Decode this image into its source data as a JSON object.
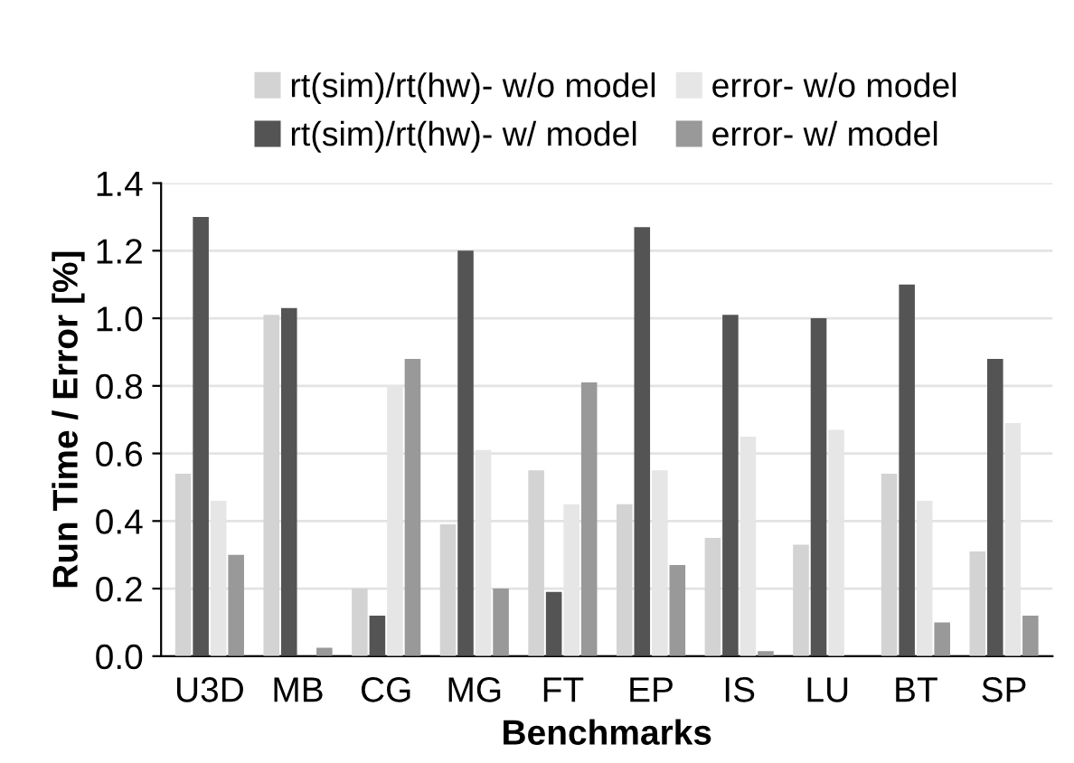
{
  "chart_data": {
    "type": "bar",
    "xlabel": "Benchmarks",
    "ylabel": "Run Time / Error [%]",
    "categories": [
      "U3D",
      "MB",
      "CG",
      "MG",
      "FT",
      "EP",
      "IS",
      "LU",
      "BT",
      "SP"
    ],
    "series": [
      {
        "name": "rt(sim)/rt(hw)- w/o model",
        "color": "#d3d3d3",
        "values": [
          0.54,
          1.01,
          0.2,
          0.39,
          0.55,
          0.45,
          0.35,
          0.33,
          0.54,
          0.31
        ]
      },
      {
        "name": "rt(sim)/rt(hw)- w/ model",
        "color": "#545454",
        "values": [
          1.3,
          1.03,
          0.12,
          1.2,
          0.19,
          1.27,
          1.01,
          1.0,
          1.1,
          0.88
        ]
      },
      {
        "name": "error- w/o model",
        "color": "#e6e6e6",
        "values": [
          0.46,
          0.0,
          0.8,
          0.61,
          0.45,
          0.55,
          0.65,
          0.67,
          0.46,
          0.69
        ]
      },
      {
        "name": "error- w/ model",
        "color": "#999999",
        "values": [
          0.3,
          0.025,
          0.88,
          0.2,
          0.81,
          0.27,
          0.015,
          0.0,
          0.1,
          0.12
        ]
      }
    ],
    "ylim": [
      0,
      1.4
    ],
    "yticks": [
      {
        "value": 0,
        "label": "0.0"
      },
      {
        "value": 0.2,
        "label": "0.2"
      },
      {
        "value": 0.4,
        "label": "0.4"
      },
      {
        "value": 0.6,
        "label": "0.6"
      },
      {
        "value": 0.8,
        "label": "0.8"
      },
      {
        "value": 1.0,
        "label": "1.0"
      },
      {
        "value": 1.2,
        "label": "1.2"
      },
      {
        "value": 1.4,
        "label": "1.4"
      }
    ],
    "grid": "y",
    "legend": "top"
  }
}
